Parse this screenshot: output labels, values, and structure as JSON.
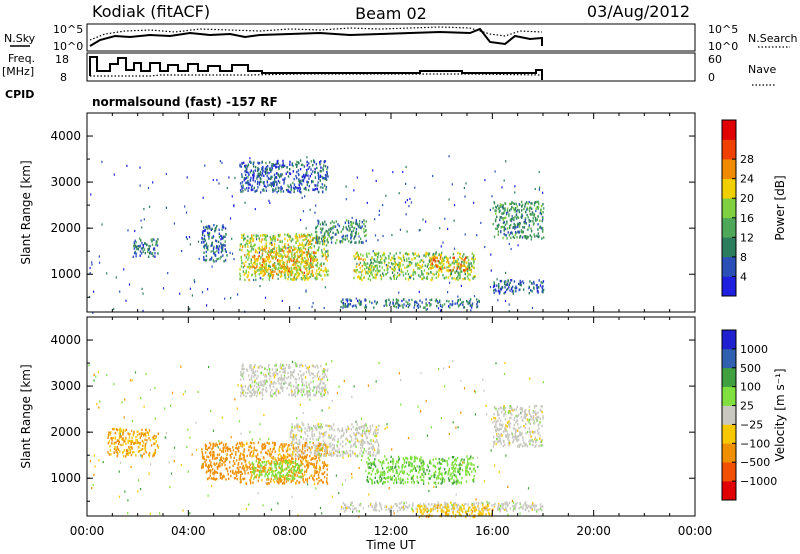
{
  "header": {
    "radar": "Kodiak (fitACF)",
    "beam": "Beam 02",
    "date": "03/Aug/2012"
  },
  "strip": {
    "nsky_label": "N.Sky",
    "nsky_top": "10^5",
    "nsky_bottom": "10^0",
    "nsearch_label": "N.Search",
    "nsearch_top": "10^5",
    "nsearch_bottom": "10^0",
    "freq_label": "Freq.",
    "freq_unit": "[MHz]",
    "freq_top": "18",
    "freq_bottom": "8",
    "nave_label": "Nave",
    "nave_top": "60",
    "nave_bottom": "0",
    "cpid_label": "CPID",
    "cpid_text": "normalsound (fast) -157 RF"
  },
  "colors": {
    "power": [
      "#1f1fe0",
      "#2a50b8",
      "#2b7d5e",
      "#4fa85a",
      "#7fd040",
      "#f0d000",
      "#f08a00",
      "#f04000",
      "#e00000"
    ],
    "velocity": [
      "#e00000",
      "#f05000",
      "#f09000",
      "#f8c800",
      "#c8c8c0",
      "#80e040",
      "#40a040",
      "#3060b0",
      "#2020d0"
    ],
    "frame": "#000000",
    "ground": "#c8c8c0"
  },
  "chart_data": [
    {
      "type": "heatmap",
      "name_panel": "power",
      "ylabel": "Slant Range [km]",
      "x_ticks": [
        "00:00",
        "04:00",
        "08:00",
        "12:00",
        "16:00",
        "20:00",
        "00:00"
      ],
      "y_ticks": [
        "1000",
        "2000",
        "3000",
        "4000"
      ],
      "ylim": [
        180,
        4500
      ],
      "data_end_hour": 18,
      "colorbar": {
        "label": "Power [dB]",
        "ticks": [
          "4",
          "8",
          "12",
          "16",
          "20",
          "24",
          "28"
        ]
      },
      "echo_regions": [
        {
          "t0": 1.8,
          "t1": 2.8,
          "r0": 1400,
          "r1": 1800,
          "value": 10
        },
        {
          "t0": 4.5,
          "t1": 5.5,
          "r0": 1300,
          "r1": 2100,
          "value": 9
        },
        {
          "t0": 6.0,
          "t1": 9.5,
          "r0": 900,
          "r1": 1900,
          "value": 19
        },
        {
          "t0": 6.5,
          "t1": 9.0,
          "r0": 1000,
          "r1": 1600,
          "value": 22
        },
        {
          "t0": 9.0,
          "t1": 11.0,
          "r0": 1700,
          "r1": 2200,
          "value": 12
        },
        {
          "t0": 10.5,
          "t1": 11.0,
          "r0": 900,
          "r1": 1500,
          "value": 20
        },
        {
          "t0": 11.0,
          "t1": 15.3,
          "r0": 900,
          "r1": 1500,
          "value": 17
        },
        {
          "t0": 13.5,
          "t1": 15.0,
          "r0": 1100,
          "r1": 1400,
          "value": 24
        },
        {
          "t0": 6.0,
          "t1": 9.5,
          "r0": 2800,
          "r1": 3500,
          "value": 8
        },
        {
          "t0": 16.0,
          "t1": 18.0,
          "r0": 1800,
          "r1": 2600,
          "value": 12
        },
        {
          "t0": 10.0,
          "t1": 15.5,
          "r0": 300,
          "r1": 480,
          "value": 10
        },
        {
          "t0": 16.0,
          "t1": 18.0,
          "r0": 600,
          "r1": 900,
          "value": 8
        }
      ]
    },
    {
      "type": "heatmap",
      "name_panel": "velocity",
      "ylabel": "Slant Range [km]",
      "xlabel": "Time UT",
      "x_ticks": [
        "00:00",
        "04:00",
        "08:00",
        "12:00",
        "16:00",
        "20:00",
        "00:00"
      ],
      "y_ticks": [
        "1000",
        "2000",
        "3000",
        "4000"
      ],
      "ylim": [
        180,
        4500
      ],
      "data_end_hour": 18,
      "colorbar": {
        "label": "Velocity [m s⁻¹]",
        "ticks": [
          "1000",
          "500",
          "100",
          "25",
          "−25",
          "−100",
          "−500",
          "−1000"
        ]
      },
      "echo_regions": [
        {
          "t0": 0.8,
          "t1": 2.8,
          "r0": 1500,
          "r1": 2100,
          "value": -100
        },
        {
          "t0": 4.5,
          "t1": 6.0,
          "r0": 1000,
          "r1": 1800,
          "value": -300
        },
        {
          "t0": 6.0,
          "t1": 9.5,
          "r0": 900,
          "r1": 1800,
          "value": -150
        },
        {
          "t0": 6.5,
          "t1": 8.5,
          "r0": 1000,
          "r1": 1400,
          "value": 60
        },
        {
          "t0": 8.0,
          "t1": 11.5,
          "r0": 1500,
          "r1": 2200,
          "value": 0
        },
        {
          "t0": 11.0,
          "t1": 15.3,
          "r0": 900,
          "r1": 1500,
          "value": 80
        },
        {
          "t0": 6.0,
          "t1": 9.5,
          "r0": 2800,
          "r1": 3500,
          "value": 0
        },
        {
          "t0": 16.0,
          "t1": 18.0,
          "r0": 1700,
          "r1": 2600,
          "value": 0
        },
        {
          "t0": 10.0,
          "t1": 18.0,
          "r0": 300,
          "r1": 500,
          "value": 0
        },
        {
          "t0": 13.0,
          "t1": 16.0,
          "r0": 180,
          "r1": 450,
          "value": -70
        }
      ]
    }
  ]
}
